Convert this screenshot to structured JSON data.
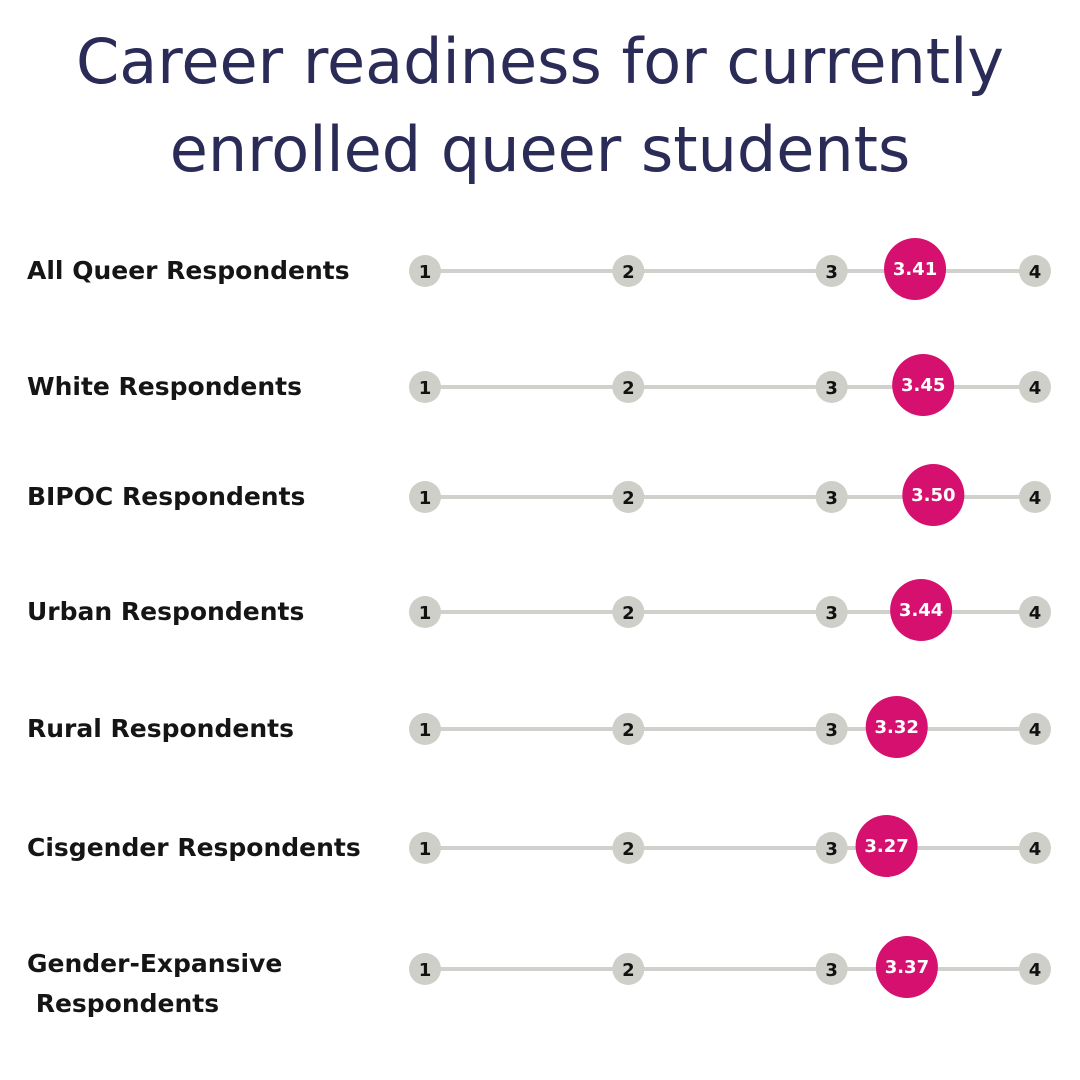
{
  "title": {
    "line1": "Career readiness for currently",
    "line2": "enrolled queer students"
  },
  "colors": {
    "title": "#2a2b57",
    "track": "#d0d0cc",
    "tick_dot": "#cfcfca",
    "value_dot": "#d5106f"
  },
  "chart_data": {
    "type": "dot-scale",
    "title": "Career readiness for currently enrolled queer students",
    "scale_ticks": [
      "1",
      "2",
      "3",
      "4"
    ],
    "xlim": [
      1,
      4
    ],
    "categories": [
      "All Queer Respondents",
      "White Respondents",
      "BIPOC Respondents",
      "Urban Respondents",
      "Rural Respondents",
      "Cisgender Respondents",
      "Gender-Expansive Respondents"
    ],
    "series": [
      {
        "values": [
          3.41,
          3.45,
          3.5,
          3.44,
          3.32,
          3.27,
          3.37
        ],
        "value_labels": [
          "3.41",
          "3.45",
          "3.50",
          "3.44",
          "3.32",
          "3.27",
          "3.37"
        ]
      }
    ]
  },
  "rows": [
    {
      "label_lines": [
        "All Queer Respondents"
      ]
    },
    {
      "label_lines": [
        "White Respondents"
      ]
    },
    {
      "label_lines": [
        "BIPOC Respondents"
      ]
    },
    {
      "label_lines": [
        "Urban Respondents"
      ]
    },
    {
      "label_lines": [
        "Rural Respondents"
      ]
    },
    {
      "label_lines": [
        "Cisgender Respondents"
      ]
    },
    {
      "label_lines": [
        "Gender-Expansive",
        " Respondents"
      ]
    }
  ]
}
